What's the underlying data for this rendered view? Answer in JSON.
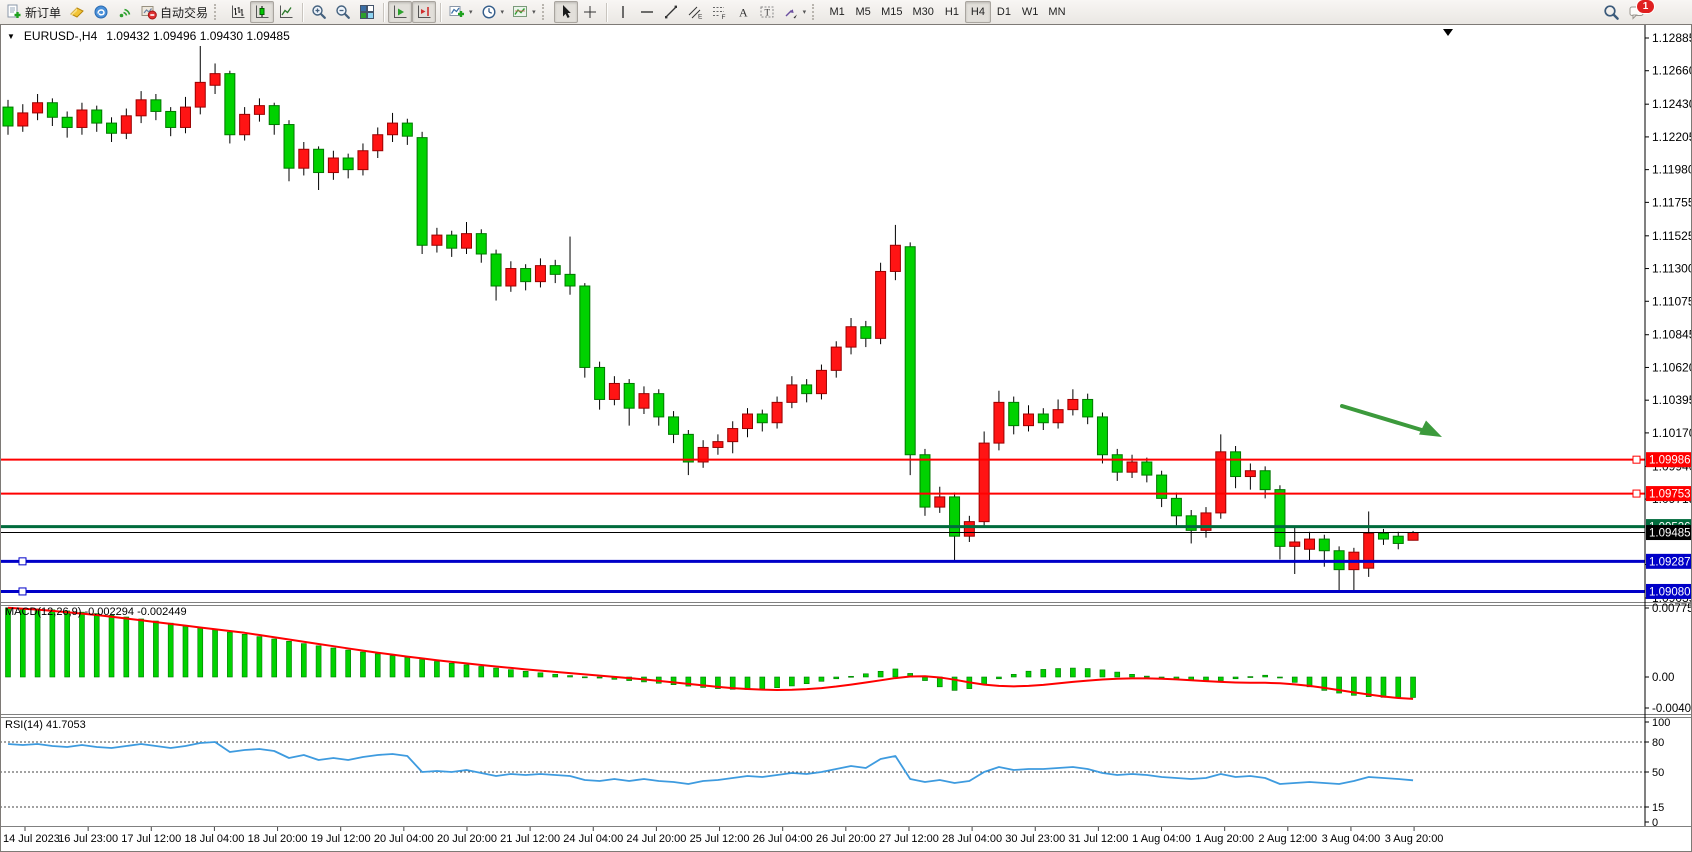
{
  "toolbar": {
    "new_order_label": "新订单",
    "autotrading_label": "自动交易",
    "timeframes": [
      "M1",
      "M5",
      "M15",
      "M30",
      "H1",
      "H4",
      "D1",
      "W1",
      "MN"
    ],
    "active_timeframe": "H4",
    "chat_badge": "1"
  },
  "chart": {
    "title": {
      "symbol": "EURUSD-,H4",
      "ohlc": "1.09432 1.09496 1.09430 1.09485"
    },
    "macd_label": "MACD(12,26,9) -0.002294 -0.002449",
    "rsi_label": "RSI(14) 41.7053",
    "price_axis_labels": [
      "1.12885",
      "1.12660",
      "1.12430",
      "1.12205",
      "1.11980",
      "1.11755",
      "1.11525",
      "1.11300",
      "1.11075",
      "1.10845",
      "1.10620",
      "1.10395",
      "1.10170",
      "1.09940",
      "1.09715",
      "1.09265",
      "1.09035"
    ],
    "time_labels": [
      "14 Jul 2023",
      "16 Jul 23:00",
      "17 Jul 12:00",
      "18 Jul 04:00",
      "18 Jul 20:00",
      "19 Jul 12:00",
      "20 Jul 04:00",
      "20 Jul 20:00",
      "21 Jul 12:00",
      "24 Jul 04:00",
      "24 Jul 20:00",
      "25 Jul 12:00",
      "26 Jul 04:00",
      "26 Jul 20:00",
      "27 Jul 12:00",
      "28 Jul 04:00",
      "30 Jul 23:00",
      "31 Jul 12:00",
      "1 Aug 04:00",
      "1 Aug 20:00",
      "2 Aug 12:00",
      "3 Aug 04:00",
      "3 Aug 20:00"
    ],
    "hlines": [
      {
        "price": 1.09986,
        "label": "1.09986",
        "color": "#ff0000",
        "width": 2,
        "handle": "right"
      },
      {
        "price": 1.09753,
        "label": "1.09753",
        "color": "#ff0000",
        "width": 2,
        "handle": "right"
      },
      {
        "price": 1.09526,
        "label": "1.09526",
        "color": "#006b3c",
        "width": 3,
        "handle": "none"
      },
      {
        "price": 1.09287,
        "label": "1.09287",
        "color": "#0000c8",
        "width": 3,
        "handle": "left"
      },
      {
        "price": 1.0908,
        "label": "1.09080",
        "color": "#0000c8",
        "width": 3,
        "handle": "left"
      }
    ],
    "current_price": {
      "value": 1.09485,
      "label": "1.09485",
      "color": "#000000"
    },
    "arrow": {
      "color": "#3c9a3c"
    }
  },
  "chart_data": [
    {
      "type": "candlestick",
      "title": "EURUSD- H4",
      "x_labels": [
        "14 Jul 2023",
        "16 Jul 23:00",
        "17 Jul 12:00",
        "18 Jul 04:00",
        "18 Jul 20:00",
        "19 Jul 12:00",
        "20 Jul 04:00",
        "20 Jul 20:00",
        "21 Jul 12:00",
        "24 Jul 04:00",
        "24 Jul 20:00",
        "25 Jul 12:00",
        "26 Jul 04:00",
        "26 Jul 20:00",
        "27 Jul 12:00",
        "28 Jul 04:00",
        "30 Jul 23:00",
        "31 Jul 12:00",
        "1 Aug 04:00",
        "1 Aug 20:00",
        "2 Aug 12:00",
        "3 Aug 04:00",
        "3 Aug 20:00"
      ],
      "ylim": [
        1.09007,
        1.12981
      ],
      "colors": {
        "up": "#ff1414",
        "up_border": "#9b0000",
        "down": "#00d200",
        "down_border": "#007800",
        "wick": "#000000"
      },
      "ohlc": [
        [
          1.1241,
          1.1246,
          1.1222,
          1.1228
        ],
        [
          1.1228,
          1.1243,
          1.1224,
          1.1237
        ],
        [
          1.1237,
          1.125,
          1.1232,
          1.1244
        ],
        [
          1.1244,
          1.1247,
          1.1228,
          1.1234
        ],
        [
          1.1234,
          1.1238,
          1.122,
          1.1227
        ],
        [
          1.1227,
          1.1244,
          1.1222,
          1.1239
        ],
        [
          1.1239,
          1.1242,
          1.1224,
          1.123
        ],
        [
          1.123,
          1.1234,
          1.1217,
          1.1223
        ],
        [
          1.1223,
          1.124,
          1.1219,
          1.1235
        ],
        [
          1.1235,
          1.1252,
          1.123,
          1.1246
        ],
        [
          1.1246,
          1.125,
          1.1232,
          1.1238
        ],
        [
          1.1238,
          1.1241,
          1.1221,
          1.1227
        ],
        [
          1.1227,
          1.1248,
          1.1223,
          1.1241
        ],
        [
          1.1241,
          1.1283,
          1.1236,
          1.1258
        ],
        [
          1.1256,
          1.1271,
          1.125,
          1.1264
        ],
        [
          1.1264,
          1.1266,
          1.1216,
          1.1222
        ],
        [
          1.1222,
          1.1241,
          1.1218,
          1.1236
        ],
        [
          1.1236,
          1.1247,
          1.1231,
          1.1242
        ],
        [
          1.1242,
          1.1244,
          1.1222,
          1.1229
        ],
        [
          1.1229,
          1.1232,
          1.119,
          1.1199
        ],
        [
          1.1199,
          1.1217,
          1.1194,
          1.1212
        ],
        [
          1.1212,
          1.1214,
          1.1184,
          1.1196
        ],
        [
          1.1196,
          1.1211,
          1.1191,
          1.1206
        ],
        [
          1.1206,
          1.1209,
          1.1192,
          1.1198
        ],
        [
          1.1198,
          1.1216,
          1.1194,
          1.1211
        ],
        [
          1.1211,
          1.1227,
          1.1206,
          1.1222
        ],
        [
          1.1222,
          1.1237,
          1.1217,
          1.123
        ],
        [
          1.123,
          1.1233,
          1.1215,
          1.1221
        ],
        [
          1.122,
          1.1224,
          1.114,
          1.1146
        ],
        [
          1.1146,
          1.1158,
          1.1141,
          1.1153
        ],
        [
          1.1153,
          1.1156,
          1.1138,
          1.1144
        ],
        [
          1.1144,
          1.1162,
          1.114,
          1.1154
        ],
        [
          1.1154,
          1.1157,
          1.1134,
          1.114
        ],
        [
          1.114,
          1.1143,
          1.1108,
          1.1118
        ],
        [
          1.1118,
          1.1135,
          1.1114,
          1.113
        ],
        [
          1.113,
          1.1133,
          1.1115,
          1.1121
        ],
        [
          1.1121,
          1.1137,
          1.1117,
          1.1132
        ],
        [
          1.1132,
          1.1136,
          1.112,
          1.1126
        ],
        [
          1.1126,
          1.1152,
          1.1112,
          1.1118
        ],
        [
          1.1118,
          1.112,
          1.1055,
          1.1062
        ],
        [
          1.1062,
          1.1066,
          1.1033,
          1.104
        ],
        [
          1.104,
          1.1056,
          1.1036,
          1.1051
        ],
        [
          1.1051,
          1.1054,
          1.1022,
          1.1034
        ],
        [
          1.1034,
          1.1049,
          1.103,
          1.1044
        ],
        [
          1.1044,
          1.1047,
          1.1022,
          1.1028
        ],
        [
          1.1028,
          1.1032,
          1.101,
          1.1016
        ],
        [
          1.1016,
          1.1019,
          1.0988,
          1.0997
        ],
        [
          1.0997,
          1.1012,
          1.0993,
          1.1007
        ],
        [
          1.1007,
          1.1016,
          1.1002,
          1.1011
        ],
        [
          1.1011,
          1.1025,
          1.1003,
          1.102
        ],
        [
          1.102,
          1.1034,
          1.1014,
          1.103
        ],
        [
          1.103,
          1.1033,
          1.1018,
          1.1024
        ],
        [
          1.1024,
          1.1042,
          1.102,
          1.1038
        ],
        [
          1.1038,
          1.1056,
          1.1034,
          1.105
        ],
        [
          1.105,
          1.1054,
          1.1038,
          1.1044
        ],
        [
          1.1044,
          1.1064,
          1.104,
          1.106
        ],
        [
          1.106,
          1.108,
          1.1055,
          1.1076
        ],
        [
          1.1076,
          1.1096,
          1.1071,
          1.109
        ],
        [
          1.109,
          1.1094,
          1.1076,
          1.1082
        ],
        [
          1.1082,
          1.1134,
          1.1078,
          1.1128
        ],
        [
          1.1128,
          1.116,
          1.1122,
          1.1146
        ],
        [
          1.1145,
          1.1148,
          1.0988,
          1.1002
        ],
        [
          1.1002,
          1.1006,
          1.096,
          1.0966
        ],
        [
          1.0966,
          1.098,
          1.0962,
          1.0973
        ],
        [
          1.0973,
          1.0976,
          1.0929,
          1.0946
        ],
        [
          1.0946,
          1.096,
          1.0942,
          1.0956
        ],
        [
          1.0956,
          1.1018,
          1.0953,
          1.101
        ],
        [
          1.101,
          1.1046,
          1.1005,
          1.1038
        ],
        [
          1.1038,
          1.1042,
          1.1016,
          1.1022
        ],
        [
          1.1022,
          1.1036,
          1.1018,
          1.103
        ],
        [
          1.103,
          1.1034,
          1.1019,
          1.1024
        ],
        [
          1.1024,
          1.104,
          1.102,
          1.1033
        ],
        [
          1.1033,
          1.1047,
          1.1029,
          1.104
        ],
        [
          1.104,
          1.1044,
          1.1023,
          1.1028
        ],
        [
          1.1028,
          1.1031,
          1.0996,
          1.1002
        ],
        [
          1.1002,
          1.1006,
          1.0984,
          1.099
        ],
        [
          1.099,
          1.1002,
          1.0986,
          1.0997
        ],
        [
          1.0997,
          1.1,
          1.0983,
          1.0988
        ],
        [
          1.0988,
          1.0991,
          1.0966,
          1.0972
        ],
        [
          1.0972,
          1.0976,
          1.0952,
          1.096
        ],
        [
          1.096,
          1.0964,
          1.0941,
          1.095
        ],
        [
          1.095,
          1.0966,
          1.0945,
          1.0962
        ],
        [
          1.0962,
          1.1016,
          1.0958,
          1.1004
        ],
        [
          1.1004,
          1.1008,
          1.0979,
          1.0987
        ],
        [
          1.0987,
          1.0996,
          1.0978,
          1.0991
        ],
        [
          1.0991,
          1.0994,
          1.0972,
          1.0978
        ],
        [
          1.0978,
          1.0981,
          1.093,
          1.0939
        ],
        [
          1.0939,
          1.0952,
          1.092,
          1.0942
        ],
        [
          1.0937,
          1.0949,
          1.0928,
          1.0944
        ],
        [
          1.0944,
          1.0947,
          1.0925,
          1.0936
        ],
        [
          1.0936,
          1.0939,
          1.0908,
          1.0923
        ],
        [
          1.0923,
          1.0938,
          1.0908,
          1.0935
        ],
        [
          1.0924,
          1.0963,
          1.0918,
          1.0948
        ],
        [
          1.0948,
          1.0951,
          1.094,
          1.0944
        ],
        [
          1.0946,
          1.0949,
          1.0937,
          1.0941
        ],
        [
          1.09432,
          1.09496,
          1.0943,
          1.09485
        ]
      ]
    },
    {
      "type": "bar",
      "name": "MACD(12,26,9)",
      "last_values": "-0.002294 -0.002449",
      "ylim": [
        -0.004007,
        0.007753
      ],
      "axis_labels": [
        "0.007753",
        "0.00",
        "-0.004007"
      ],
      "colors": {
        "histogram": "#00d200",
        "histogram_border": "#007800",
        "signal": "#ff0000"
      },
      "values": [
        0.00775,
        0.0077,
        0.00762,
        0.00752,
        0.0074,
        0.00726,
        0.0071,
        0.00692,
        0.00672,
        0.0065,
        0.00627,
        0.00603,
        0.00578,
        0.00553,
        0.00528,
        0.00503,
        0.00478,
        0.00452,
        0.00426,
        0.004,
        0.00374,
        0.00349,
        0.00325,
        0.00302,
        0.0028,
        0.00259,
        0.00239,
        0.0022,
        0.00196,
        0.00174,
        0.00154,
        0.00136,
        0.00118,
        0.001,
        0.00082,
        0.00064,
        0.00047,
        0.00031,
        0.00016,
        2e-05,
        -0.00012,
        -0.00026,
        -0.0004,
        -0.00055,
        -0.0007,
        -0.00086,
        -0.00102,
        -0.00117,
        -0.0013,
        -0.00138,
        -0.0014,
        -0.00134,
        -0.0012,
        -0.001,
        -0.00075,
        -0.00048,
        -0.0002,
        8e-05,
        0.00036,
        0.00064,
        0.0009,
        0.0004,
        -0.0004,
        -0.0011,
        -0.0015,
        -0.0013,
        -0.0008,
        -0.0002,
        0.0003,
        0.00065,
        0.00085,
        0.00095,
        0.001,
        0.00095,
        0.0008,
        0.00055,
        0.0003,
        0.0001,
        -5e-05,
        -0.0002,
        -0.00035,
        -0.00045,
        -0.0004,
        -0.0002,
        5e-05,
        0.0002,
        -0.0001,
        -0.0006,
        -0.0011,
        -0.0015,
        -0.0018,
        -0.00205,
        -0.0022,
        -0.00228,
        -0.0023,
        -0.002294
      ],
      "signal": [
        0.00775,
        0.00765,
        0.00755,
        0.0074,
        0.00725,
        0.0071,
        0.00695,
        0.00675,
        0.00655,
        0.00635,
        0.00615,
        0.00595,
        0.00575,
        0.00555,
        0.00535,
        0.00515,
        0.00495,
        0.0047,
        0.00445,
        0.0042,
        0.00395,
        0.0037,
        0.00345,
        0.0032,
        0.00295,
        0.00272,
        0.0025,
        0.00228,
        0.00208,
        0.00188,
        0.0017,
        0.00152,
        0.00135,
        0.00118,
        0.00102,
        0.00086,
        0.00071,
        0.00057,
        0.00043,
        0.00029,
        0.00015,
        2e-05,
        -0.00012,
        -0.00027,
        -0.00043,
        -0.0006,
        -0.00077,
        -0.00094,
        -0.0011,
        -0.00124,
        -0.00135,
        -0.00142,
        -0.00145,
        -0.00143,
        -0.00136,
        -0.00124,
        -0.00107,
        -0.00086,
        -0.00062,
        -0.00037,
        -0.00012,
        5e-05,
        8e-05,
        -5e-05,
        -0.0003,
        -0.0006,
        -0.00085,
        -0.001,
        -0.00105,
        -0.001,
        -0.00088,
        -0.00072,
        -0.00055,
        -0.0004,
        -0.00028,
        -0.0002,
        -0.00016,
        -0.00016,
        -0.0002,
        -0.00027,
        -0.00036,
        -0.00046,
        -0.00055,
        -0.00061,
        -0.00064,
        -0.00065,
        -0.0007,
        -0.00082,
        -0.001,
        -0.00122,
        -0.00147,
        -0.00172,
        -0.00196,
        -0.00218,
        -0.00235,
        -0.002449
      ]
    },
    {
      "type": "line",
      "name": "RSI(14)",
      "last_value": 41.7053,
      "ylim": [
        0,
        100
      ],
      "levels": [
        80,
        50,
        15
      ],
      "axis_labels": [
        "100",
        "80",
        "50",
        "15",
        "0"
      ],
      "color": "#3e9bdf",
      "values": [
        78,
        77,
        78,
        76,
        75,
        77,
        75,
        74,
        76,
        78,
        76,
        74,
        76,
        79,
        80,
        70,
        72,
        73,
        71,
        64,
        67,
        62,
        64,
        62,
        65,
        67,
        68,
        66,
        50,
        51,
        50,
        52,
        49,
        46,
        48,
        47,
        48,
        47,
        46,
        42,
        41,
        43,
        41,
        43,
        41,
        40,
        38,
        41,
        42,
        44,
        46,
        45,
        47,
        49,
        48,
        50,
        53,
        56,
        54,
        63,
        66,
        43,
        40,
        42,
        39,
        41,
        50,
        55,
        52,
        53,
        53,
        54,
        55,
        53,
        49,
        47,
        48,
        47,
        45,
        44,
        43,
        44,
        48,
        45,
        46,
        44,
        38,
        39,
        40,
        39,
        38,
        41,
        45,
        44,
        43,
        41.7
      ]
    }
  ]
}
